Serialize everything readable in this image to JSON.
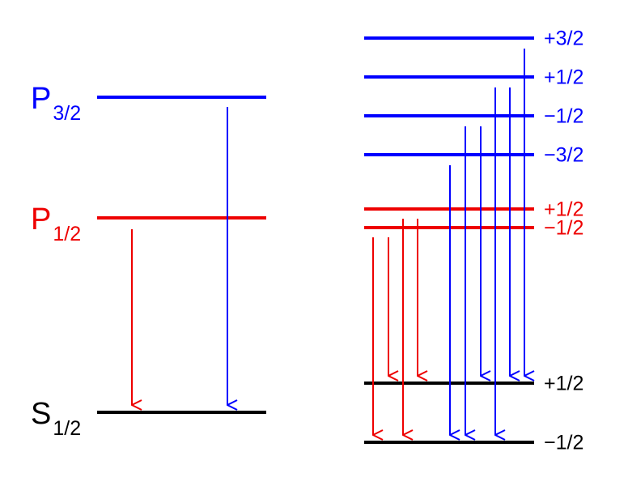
{
  "levels": [
    {
      "symbol": "P",
      "sub": "3/2"
    },
    {
      "symbol": "P",
      "sub": "1/2"
    },
    {
      "symbol": "S",
      "sub": "1/2"
    }
  ],
  "sublevels": [
    "+3/2",
    "+1/2",
    "−1/2",
    "−3/2",
    "+1/2",
    "−1/2",
    "+1/2",
    "−1/2"
  ]
}
